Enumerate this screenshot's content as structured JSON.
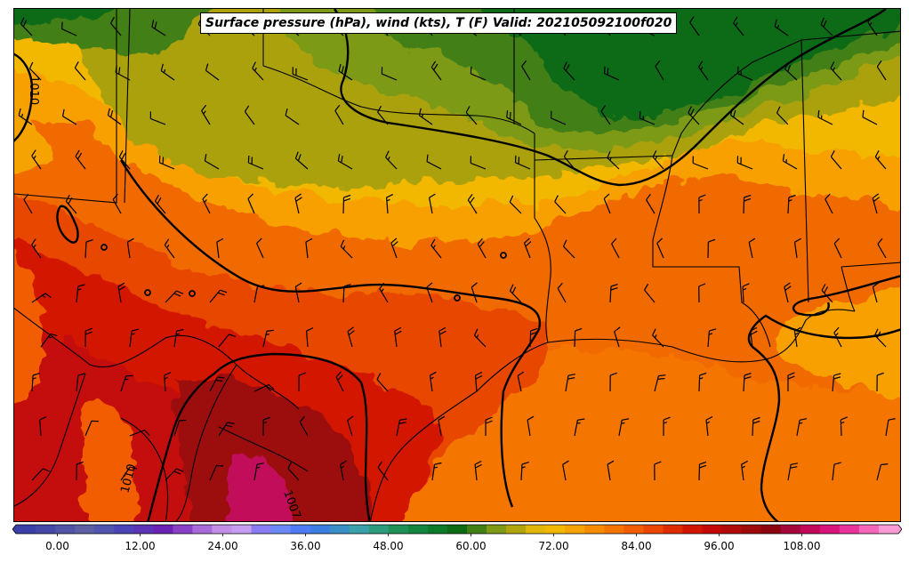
{
  "title": "Surface pressure (hPa), wind (kts), T (F) Valid: 202105092100f020",
  "colorbar": {
    "tick_labels": [
      "0.00",
      "12.00",
      "24.00",
      "36.00",
      "48.00",
      "60.00",
      "72.00",
      "84.00",
      "96.00",
      "108.00"
    ],
    "tick_values": [
      0,
      12,
      24,
      36,
      48,
      60,
      72,
      84,
      96,
      108
    ],
    "min": -6,
    "max": 122,
    "step": 3,
    "colors": [
      "#3b3fa8",
      "#4447a6",
      "#5154a5",
      "#5d5ea4",
      "#5055b0",
      "#4a44b7",
      "#5a34b5",
      "#6a22b4",
      "#8a3fc7",
      "#a86ad9",
      "#c38ee6",
      "#c69df0",
      "#8a7cf2",
      "#6b8af7",
      "#4f7bf7",
      "#3b7de0",
      "#3a8ec8",
      "#3aa0aa",
      "#2d9c7d",
      "#1f9158",
      "#13853f",
      "#0b7a2b",
      "#0d6b14",
      "#437f17",
      "#7c9a16",
      "#b0a40f",
      "#e3b60a",
      "#f2b800",
      "#f5a300",
      "#f58c00",
      "#f47400",
      "#f15d00",
      "#e84600",
      "#de2c00",
      "#d21500",
      "#c40808",
      "#b00a0a",
      "#9c0a0a",
      "#8a0510",
      "#a4083a",
      "#c10b5a",
      "#d8147b",
      "#e9339a",
      "#f467b9",
      "#f99ad4"
    ],
    "colors_comment": ""
  },
  "contour_labels": [
    "1010",
    "1010",
    "1007"
  ],
  "map": {
    "field": "surface temperature",
    "units": "F",
    "region": "south-central United States and northern Mexico, Gulf of Mexico",
    "isobar_color": "#000000",
    "border_color": "#000000",
    "wind_barb_color": "#000000"
  }
}
